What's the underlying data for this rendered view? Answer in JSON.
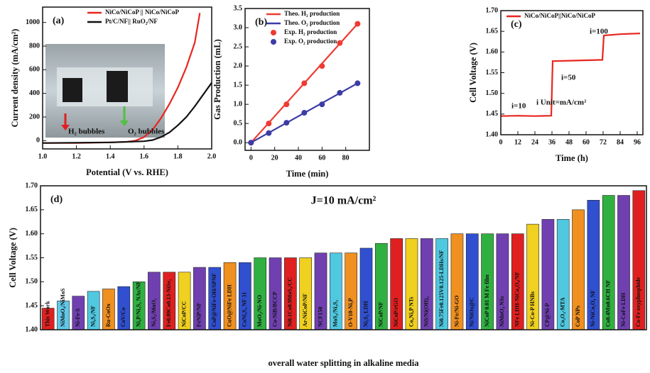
{
  "chart_data": [
    {
      "type": "line",
      "panel_label": "(a)",
      "x_label": "Potential (V vs. RHE)",
      "y_label": "Current density (mA/cm²)",
      "xlim": [
        1.0,
        2.0
      ],
      "xticks": [
        {
          "value": 1.0,
          "label": "1.0"
        },
        {
          "value": 1.2,
          "label": "1.2"
        },
        {
          "value": 1.4,
          "label": "1.4"
        },
        {
          "value": 1.6,
          "label": "1.6"
        },
        {
          "value": 1.8,
          "label": "1.8"
        },
        {
          "value": 2.0,
          "label": "2.0"
        }
      ],
      "ylim": [
        -70,
        1130
      ],
      "yticks": [
        0,
        200,
        400,
        600,
        800,
        1000
      ],
      "legend": "upper right",
      "annotations": [
        "H₂ bubbles",
        "O₂ bubbles"
      ],
      "series": [
        {
          "name": "NiCo/NiCoP || NiCo/NiCoP",
          "color": "#e8261f",
          "mode": "line",
          "x": [
            1.0,
            1.2,
            1.4,
            1.5,
            1.55,
            1.6,
            1.65,
            1.7,
            1.75,
            1.8,
            1.85,
            1.9,
            1.93
          ],
          "values": [
            -20,
            -20,
            -15,
            -10,
            0,
            30,
            90,
            190,
            310,
            450,
            620,
            830,
            1080
          ]
        },
        {
          "name": "Pt/C/NF|| RuO₂/NF",
          "color": "#111111",
          "mode": "line",
          "x": [
            1.0,
            1.4,
            1.6,
            1.65,
            1.7,
            1.75,
            1.8,
            1.85,
            1.9,
            1.95,
            2.0
          ],
          "values": [
            -20,
            -15,
            -5,
            5,
            30,
            70,
            130,
            200,
            290,
            390,
            490
          ]
        }
      ]
    },
    {
      "type": "line",
      "panel_label": "(b)",
      "x_label": "Time (min)",
      "y_label": "Gas Production (mL)",
      "xlim": [
        -5,
        100
      ],
      "xticks": [
        0,
        20,
        40,
        60,
        80
      ],
      "ylim": [
        -0.2,
        3.5
      ],
      "yticks": [
        {
          "value": 0,
          "label": "0.0"
        },
        {
          "value": 0.5,
          "label": "0.5"
        },
        {
          "value": 1.0,
          "label": "1.0"
        },
        {
          "value": 1.5,
          "label": "1.5"
        },
        {
          "value": 2.0,
          "label": "2.0"
        },
        {
          "value": 2.5,
          "label": "2.5"
        },
        {
          "value": 3.0,
          "label": "3.0"
        },
        {
          "value": 3.5,
          "label": "3.5"
        }
      ],
      "legend": "upper left",
      "series": [
        {
          "name": "Theo. H₂ production",
          "color": "#ee3b33",
          "mode": "line",
          "x": [
            0,
            90
          ],
          "values": [
            0,
            3.1
          ]
        },
        {
          "name": "Theo. O₂ production",
          "color": "#3c3ca6",
          "mode": "line",
          "x": [
            0,
            90
          ],
          "values": [
            0,
            1.55
          ]
        },
        {
          "name": "Exp. H₂ production",
          "color": "#ee3b33",
          "mode": "markers",
          "x": [
            0,
            15,
            30,
            45,
            60,
            75,
            90
          ],
          "values": [
            0,
            0.5,
            1.0,
            1.55,
            2.0,
            2.6,
            3.1
          ]
        },
        {
          "name": "Exp. O₂ production",
          "color": "#3c3ca6",
          "mode": "markers",
          "x": [
            0,
            15,
            30,
            45,
            60,
            75,
            90
          ],
          "values": [
            0,
            0.25,
            0.52,
            0.78,
            1.0,
            1.3,
            1.55
          ]
        }
      ]
    },
    {
      "type": "line",
      "panel_label": "(c)",
      "x_label": "Time (h)",
      "y_label": "Cell Voltage (V)",
      "xlim": [
        0,
        100
      ],
      "xticks": [
        0,
        12,
        24,
        36,
        48,
        60,
        72,
        84,
        96
      ],
      "ylim": [
        1.4,
        1.7
      ],
      "yticks": [
        {
          "value": 1.4,
          "label": "1.40"
        },
        {
          "value": 1.45,
          "label": "1.45"
        },
        {
          "value": 1.5,
          "label": "1.50"
        },
        {
          "value": 1.55,
          "label": "1.55"
        },
        {
          "value": 1.6,
          "label": "1.60"
        },
        {
          "value": 1.65,
          "label": "1.65"
        },
        {
          "value": 1.7,
          "label": "1.70"
        }
      ],
      "legend": "upper left",
      "annotations": [
        "i=10",
        "i=50",
        "i=100",
        "i Unit=mA/cm²"
      ],
      "series": [
        {
          "name": "NiCo/NiCoP||NiCo/NiCoP",
          "color": "#e8261f",
          "mode": "line",
          "x": [
            0,
            12,
            24,
            35.5,
            36.5,
            48,
            60,
            71.5,
            72.5,
            84,
            98
          ],
          "values": [
            1.445,
            1.446,
            1.445,
            1.446,
            1.578,
            1.579,
            1.58,
            1.581,
            1.64,
            1.643,
            1.645
          ]
        }
      ]
    },
    {
      "type": "bar",
      "panel_label": "(d)",
      "title": "J=10 mA/cm²",
      "x_label": "overall water splitting in alkaline media",
      "y_label": "Cell Voltage (V)",
      "ylim": [
        1.4,
        1.7
      ],
      "yticks": [
        {
          "value": 1.4,
          "label": "1.40"
        },
        {
          "value": 1.45,
          "label": "1.45"
        },
        {
          "value": 1.5,
          "label": "1.50"
        },
        {
          "value": 1.55,
          "label": "1.55"
        },
        {
          "value": 1.6,
          "label": "1.60"
        },
        {
          "value": 1.65,
          "label": "1.65"
        },
        {
          "value": 1.7,
          "label": "1.70"
        }
      ],
      "categories": [
        "This Work",
        "NiMoO₄/NiMoS",
        "Ni-Fe-S",
        "Ni₃S₂/NF",
        "Ru-CoOx",
        "CoV/Co",
        "Ni₃P/Ni₃S₂ NAs/NF",
        "Ni₃S₂/MnO₂",
        "Fe0.09Co0.13-NiSe₂",
        "NiCoP/CC",
        "FeNiP/NF",
        "CoP@NiFe-OH/SPNF",
        "CuO@NiFe LDH",
        "CoNi₂S₄ NF 31",
        "MoO₂/Ni-NO",
        "Co-NiB/BCCP",
        "Ni0.1Co0.9MoS₂/CC",
        "Ar-NiCoP/NF",
        "NCF150",
        "MoS₂/Ni₃S₂",
        "O-V10-Ni₃P",
        "Ni₃S₂ LDH",
        "NiCoP/NF",
        "NiCoP/rGO",
        "Co₅Ni₅P NTs",
        "NiS/Ni(OH)₂",
        "Ni0.75Fe0.125V0.125-LDHs/NF",
        "Ni-Fe/Ni-GO",
        "Ni/NiOx@C",
        "NiCoP 0.01 M Fe film",
        "NiMoO₄ NSs",
        "NFe LDH-NiCo₂O₄/NF",
        "Ni-Co-P HNBs",
        "CP@Ni-P",
        "Co₃O₄-MTA",
        "CoP NPs",
        "Ni-NiCo₂O₄ NF",
        "Co0.4Mn0.6CH NF",
        "Ni-CoFe LDH",
        "Co-Fe oxyphosphide"
      ],
      "values": [
        1.445,
        1.46,
        1.47,
        1.48,
        1.485,
        1.49,
        1.5,
        1.52,
        1.52,
        1.52,
        1.53,
        1.53,
        1.54,
        1.54,
        1.55,
        1.55,
        1.55,
        1.55,
        1.56,
        1.56,
        1.56,
        1.57,
        1.58,
        1.59,
        1.59,
        1.59,
        1.59,
        1.6,
        1.6,
        1.6,
        1.6,
        1.6,
        1.62,
        1.63,
        1.63,
        1.65,
        1.67,
        1.68,
        1.68,
        1.69
      ],
      "colors": [
        "#e02020",
        "#60c8e8",
        "#7040b0",
        "#50c8e0",
        "#f09020",
        "#3050d0",
        "#30b040",
        "#7040b0",
        "#e02020",
        "#f0d020",
        "#7040b0",
        "#3050d0",
        "#f09020",
        "#3050d0",
        "#30b040",
        "#7040b0",
        "#e02020",
        "#f0d020",
        "#7040b0",
        "#50c8e0",
        "#f09020",
        "#3050d0",
        "#30b040",
        "#e02020",
        "#f0d020",
        "#7040b0",
        "#50c8e0",
        "#f09020",
        "#3050d0",
        "#30b040",
        "#7040b0",
        "#e02020",
        "#f0d020",
        "#7040b0",
        "#50c8e0",
        "#f09020",
        "#3050d0",
        "#30b040",
        "#7040b0",
        "#e02020"
      ]
    }
  ]
}
